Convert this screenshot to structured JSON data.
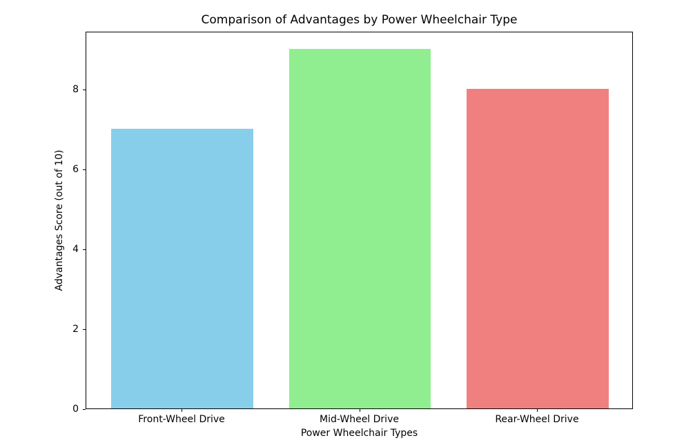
{
  "chart_data": {
    "type": "bar",
    "title": "Comparison of Advantages by Power Wheelchair Type",
    "xlabel": "Power Wheelchair Types",
    "ylabel": "Advantages Score (out of 10)",
    "categories": [
      "Front-Wheel Drive",
      "Mid-Wheel Drive",
      "Rear-Wheel Drive"
    ],
    "values": [
      7,
      9,
      8
    ],
    "bar_colors": [
      "#87CEEB",
      "#90EE90",
      "#F08080"
    ],
    "yticks": [
      0,
      2,
      4,
      6,
      8
    ],
    "ytick_labels": [
      "0",
      "2",
      "4",
      "6",
      "8"
    ],
    "ylim": [
      0,
      9.45
    ],
    "xlim": [
      -0.54,
      2.54
    ],
    "bar_width": 0.8,
    "grid": false,
    "legend_position": null,
    "axis_color": "#000000",
    "background_color": "#ffffff"
  }
}
